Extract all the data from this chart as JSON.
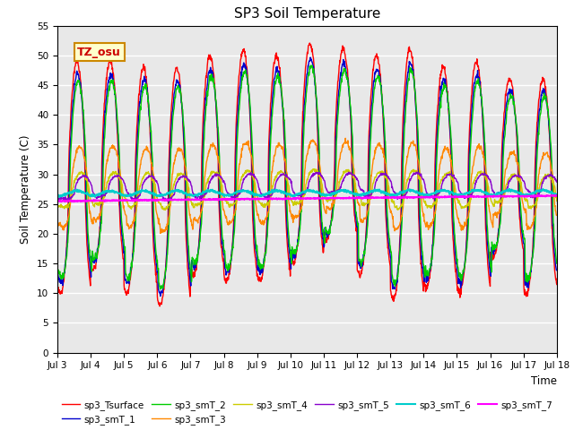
{
  "title": "SP3 Soil Temperature",
  "xlabel": "Time",
  "ylabel": "Soil Temperature (C)",
  "ylim": [
    0,
    55
  ],
  "yticks": [
    0,
    5,
    10,
    15,
    20,
    25,
    30,
    35,
    40,
    45,
    50,
    55
  ],
  "x_tick_labels": [
    "Jul 3",
    "Jul 4",
    "Jul 5",
    "Jul 6",
    "Jul 7",
    "Jul 8",
    "Jul 9",
    "Jul 10",
    "Jul 11",
    "Jul 12",
    "Jul 13",
    "Jul 14",
    "Jul 15",
    "Jul 16",
    "Jul 17",
    "Jul 18"
  ],
  "bg_color": "#e8e8e8",
  "fig_color": "#ffffff",
  "annotation_text": "TZ_osu",
  "annotation_color": "#cc0000",
  "annotation_bg": "#ffffcc",
  "annotation_border": "#cc8800",
  "series_colors": {
    "sp3_Tsurface": "#ff0000",
    "sp3_smT_1": "#0000cc",
    "sp3_smT_2": "#00cc00",
    "sp3_smT_3": "#ff8800",
    "sp3_smT_4": "#cccc00",
    "sp3_smT_5": "#8800cc",
    "sp3_smT_6": "#00cccc",
    "sp3_smT_7": "#ff00ff"
  },
  "n_days": 15,
  "title_fontsize": 11
}
